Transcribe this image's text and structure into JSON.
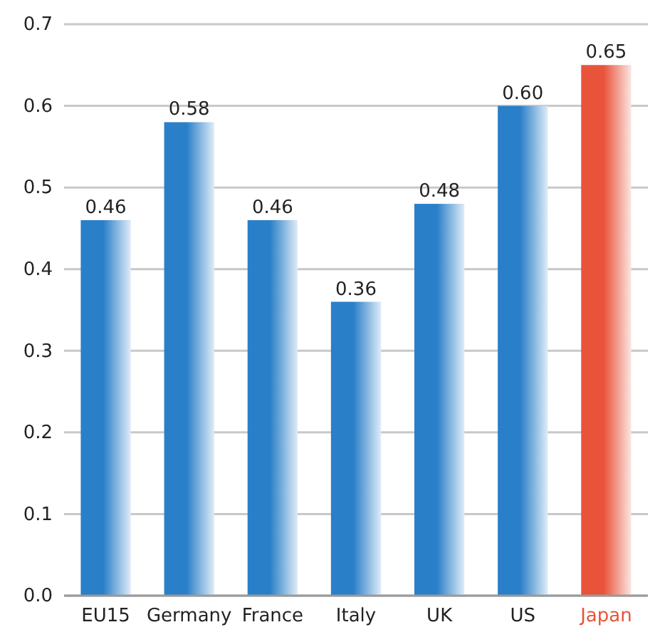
{
  "chart_data": {
    "type": "bar",
    "categories": [
      "EU15",
      "Germany",
      "France",
      "Italy",
      "UK",
      "US",
      "Japan"
    ],
    "values": [
      0.46,
      0.58,
      0.46,
      0.36,
      0.48,
      0.6,
      0.65
    ],
    "colors": [
      "#2a7fc9",
      "#2a7fc9",
      "#2a7fc9",
      "#2a7fc9",
      "#2a7fc9",
      "#2a7fc9",
      "#e8533a"
    ],
    "value_labels": [
      "0.46",
      "0.58",
      "0.46",
      "0.36",
      "0.48",
      "0.60",
      "0.65"
    ],
    "ylim": [
      0,
      0.7
    ],
    "yticks": [
      {
        "value": 0,
        "label": "0.0"
      },
      {
        "value": 0.1,
        "label": "0.1"
      },
      {
        "value": 0.2,
        "label": "0.2"
      },
      {
        "value": 0.3,
        "label": "0.3"
      },
      {
        "value": 0.4,
        "label": "0.4"
      },
      {
        "value": 0.5,
        "label": "0.5"
      },
      {
        "value": 0.6,
        "label": "0.6"
      },
      {
        "value": 0.7,
        "label": "0.7"
      }
    ],
    "grid": "y"
  }
}
